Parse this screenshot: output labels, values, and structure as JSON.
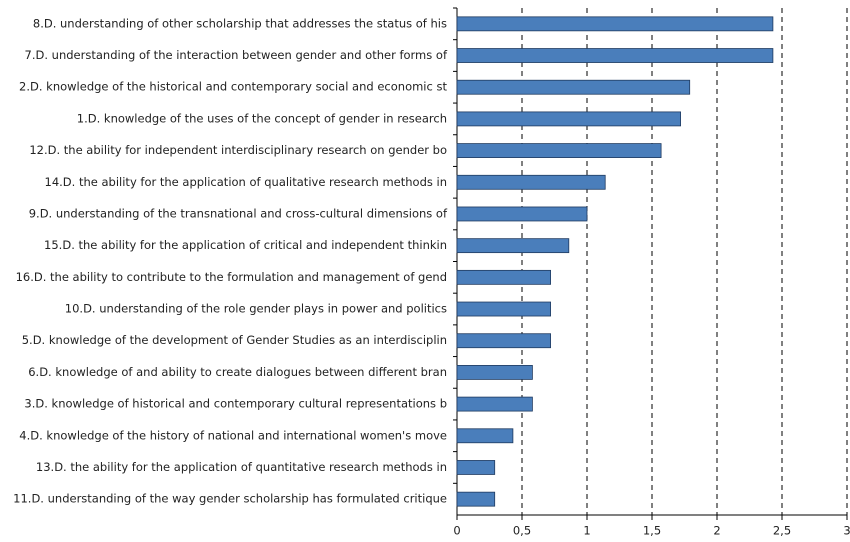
{
  "chart_data": {
    "type": "barh",
    "categories": [
      "8.D. understanding of other scholarship that addresses the status of his",
      "7.D. understanding of the interaction between gender and other forms of",
      "2.D. knowledge of the historical and contemporary social and economic st",
      "1.D. knowledge of the uses of the concept of gender in research",
      "12.D. the ability for independent interdisciplinary research on gender bo",
      "14.D. the ability for the application of qualitative research methods in",
      "9.D. understanding of the transnational and cross-cultural dimensions of",
      "15.D. the ability for the application of critical and independent thinkin",
      "16.D. the ability to contribute to the formulation and management of gend",
      "10.D. understanding of the role gender plays in power and politics",
      "5.D. knowledge of the development of Gender Studies as an interdisciplin",
      "6.D. knowledge of and ability to create dialogues between different bran",
      "3.D. knowledge of historical and contemporary cultural representations b",
      "4.D. knowledge of the history of national and international women's move",
      "13.D. the ability for the application of quantitative research methods in",
      "11.D. understanding of the way gender scholarship has formulated critique"
    ],
    "values": [
      2.43,
      2.43,
      1.79,
      1.72,
      1.57,
      1.14,
      1.0,
      0.86,
      0.72,
      0.72,
      0.72,
      0.58,
      0.58,
      0.43,
      0.29,
      0.29
    ],
    "color": "#4a7ebb",
    "xlim": [
      0,
      3
    ],
    "xticks": [
      0,
      {
        "value": 0.5,
        "label": "0,5"
      },
      1,
      {
        "value": 1.5,
        "label": "1,5"
      },
      2,
      {
        "value": 2.5,
        "label": "2,5"
      },
      3
    ],
    "grid": true
  }
}
